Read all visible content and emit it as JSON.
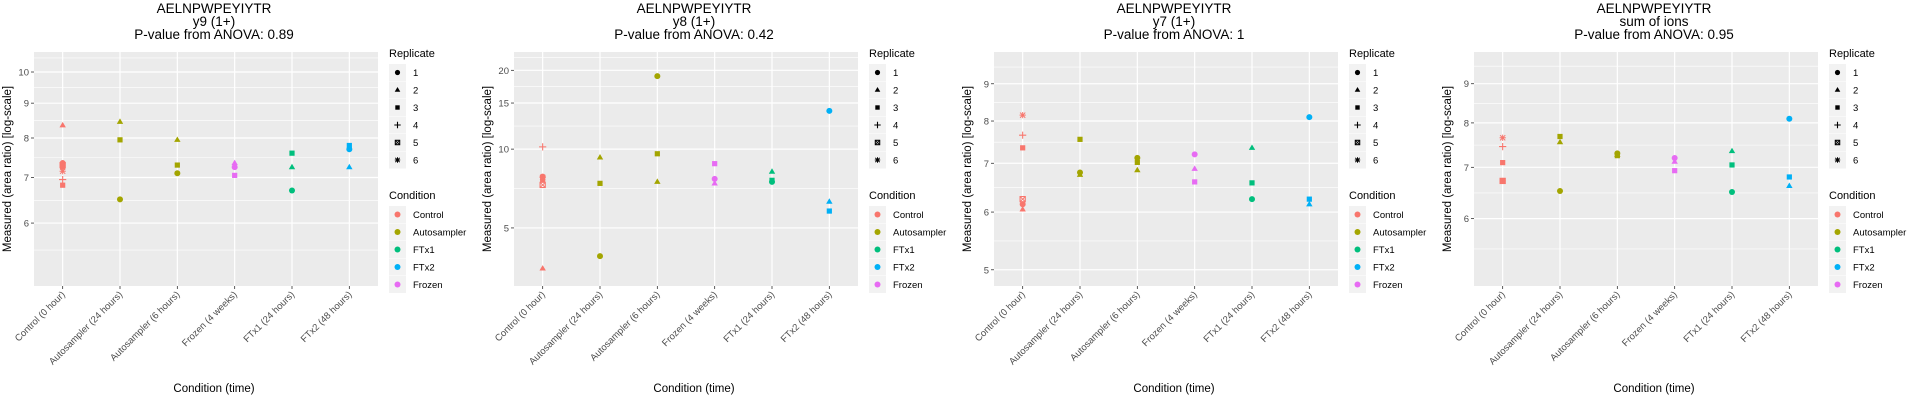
{
  "legend": {
    "replicate_title": "Replicate",
    "replicates": [
      {
        "label": "1",
        "shape": "circle"
      },
      {
        "label": "2",
        "shape": "triangle"
      },
      {
        "label": "3",
        "shape": "square"
      },
      {
        "label": "4",
        "shape": "plus"
      },
      {
        "label": "5",
        "shape": "square-cross"
      },
      {
        "label": "6",
        "shape": "asterisk"
      }
    ],
    "condition_title": "Condition",
    "conditions": [
      {
        "label": "Control",
        "color": "#F8766D"
      },
      {
        "label": "Autosampler",
        "color": "#A3A500"
      },
      {
        "label": "FTx1",
        "color": "#00BF7D"
      },
      {
        "label": "FTx2",
        "color": "#00B0F6"
      },
      {
        "label": "Frozen",
        "color": "#E76BF3"
      }
    ]
  },
  "chart_data": [
    {
      "type": "scatter",
      "title": [
        "AELNPWPEYIYTR",
        "y9 (1+)",
        "P-value from ANOVA: 0.89"
      ],
      "xlabel": "Condition (time)",
      "ylabel": "Measured (area ratio) [log-scale]",
      "yscale": "log",
      "ylim": [
        4.85,
        10.7
      ],
      "yticks": [
        6,
        7,
        8,
        9,
        10
      ],
      "grid": true,
      "legend_position": "right",
      "categories": [
        "Control (0 hour)",
        "Autosampler (24 hours)",
        "Autosampler (6 hours)",
        "Frozen (4 weeks)",
        "FTx1 (24 hours)",
        "FTx2 (48 hours)"
      ],
      "points": [
        {
          "x": 0,
          "y": 8.35,
          "replicate": 2,
          "condition": "Control"
        },
        {
          "x": 0,
          "y": 7.35,
          "replicate": 1,
          "condition": "Control"
        },
        {
          "x": 0,
          "y": 7.3,
          "replicate": 5,
          "condition": "Control"
        },
        {
          "x": 0,
          "y": 7.25,
          "replicate": 3,
          "condition": "Control"
        },
        {
          "x": 0,
          "y": 7.15,
          "replicate": 6,
          "condition": "Control"
        },
        {
          "x": 0,
          "y": 6.95,
          "replicate": 4,
          "condition": "Control"
        },
        {
          "x": 0,
          "y": 6.82,
          "replicate": 3,
          "condition": "Control"
        },
        {
          "x": 1,
          "y": 8.45,
          "replicate": 2,
          "condition": "Autosampler"
        },
        {
          "x": 1,
          "y": 7.95,
          "replicate": 3,
          "condition": "Autosampler"
        },
        {
          "x": 1,
          "y": 6.5,
          "replicate": 1,
          "condition": "Autosampler"
        },
        {
          "x": 2,
          "y": 7.95,
          "replicate": 2,
          "condition": "Autosampler"
        },
        {
          "x": 2,
          "y": 7.3,
          "replicate": 3,
          "condition": "Autosampler"
        },
        {
          "x": 2,
          "y": 7.1,
          "replicate": 1,
          "condition": "Autosampler"
        },
        {
          "x": 3,
          "y": 7.35,
          "replicate": 2,
          "condition": "Frozen"
        },
        {
          "x": 3,
          "y": 7.25,
          "replicate": 1,
          "condition": "Frozen"
        },
        {
          "x": 3,
          "y": 7.05,
          "replicate": 3,
          "condition": "Frozen"
        },
        {
          "x": 4,
          "y": 7.6,
          "replicate": 3,
          "condition": "FTx1"
        },
        {
          "x": 4,
          "y": 7.25,
          "replicate": 2,
          "condition": "FTx1"
        },
        {
          "x": 4,
          "y": 6.7,
          "replicate": 1,
          "condition": "FTx1"
        },
        {
          "x": 5,
          "y": 7.8,
          "replicate": 3,
          "condition": "FTx2"
        },
        {
          "x": 5,
          "y": 7.7,
          "replicate": 1,
          "condition": "FTx2"
        },
        {
          "x": 5,
          "y": 7.25,
          "replicate": 2,
          "condition": "FTx2"
        }
      ]
    },
    {
      "type": "scatter",
      "title": [
        "AELNPWPEYIYTR",
        "y8 (1+)",
        "P-value from ANOVA: 0.42"
      ],
      "xlabel": "Condition (time)",
      "ylabel": "Measured (area ratio) [log-scale]",
      "yscale": "log",
      "ylim": [
        3.0,
        23.5
      ],
      "yticks": [
        5,
        10,
        15,
        20
      ],
      "grid": true,
      "legend_position": "right",
      "categories": [
        "Control (0 hour)",
        "Autosampler (24 hours)",
        "Autosampler (6 hours)",
        "Frozen (4 weeks)",
        "FTx1 (24 hours)",
        "FTx2 (48 hours)"
      ],
      "points": [
        {
          "x": 0,
          "y": 10.2,
          "replicate": 4,
          "condition": "Control"
        },
        {
          "x": 0,
          "y": 7.85,
          "replicate": 1,
          "condition": "Control"
        },
        {
          "x": 0,
          "y": 7.8,
          "replicate": 6,
          "condition": "Control"
        },
        {
          "x": 0,
          "y": 7.65,
          "replicate": 3,
          "condition": "Control"
        },
        {
          "x": 0,
          "y": 7.3,
          "replicate": 5,
          "condition": "Control"
        },
        {
          "x": 0,
          "y": 3.5,
          "replicate": 2,
          "condition": "Control"
        },
        {
          "x": 1,
          "y": 9.3,
          "replicate": 2,
          "condition": "Autosampler"
        },
        {
          "x": 1,
          "y": 7.4,
          "replicate": 3,
          "condition": "Autosampler"
        },
        {
          "x": 1,
          "y": 3.9,
          "replicate": 1,
          "condition": "Autosampler"
        },
        {
          "x": 2,
          "y": 19.0,
          "replicate": 1,
          "condition": "Autosampler"
        },
        {
          "x": 2,
          "y": 9.6,
          "replicate": 3,
          "condition": "Autosampler"
        },
        {
          "x": 2,
          "y": 7.5,
          "replicate": 2,
          "condition": "Autosampler"
        },
        {
          "x": 3,
          "y": 8.8,
          "replicate": 3,
          "condition": "Frozen"
        },
        {
          "x": 3,
          "y": 7.7,
          "replicate": 1,
          "condition": "Frozen"
        },
        {
          "x": 3,
          "y": 7.4,
          "replicate": 2,
          "condition": "Frozen"
        },
        {
          "x": 4,
          "y": 8.2,
          "replicate": 2,
          "condition": "FTx1"
        },
        {
          "x": 4,
          "y": 7.6,
          "replicate": 3,
          "condition": "FTx1"
        },
        {
          "x": 4,
          "y": 7.5,
          "replicate": 1,
          "condition": "FTx1"
        },
        {
          "x": 5,
          "y": 14.0,
          "replicate": 1,
          "condition": "FTx2"
        },
        {
          "x": 5,
          "y": 6.3,
          "replicate": 2,
          "condition": "FTx2"
        },
        {
          "x": 5,
          "y": 5.8,
          "replicate": 3,
          "condition": "FTx2"
        }
      ]
    },
    {
      "type": "scatter",
      "title": [
        "AELNPWPEYIYTR",
        "y7 (1+)",
        "P-value from ANOVA: 1"
      ],
      "xlabel": "Condition (time)",
      "ylabel": "Measured (area ratio) [log-scale]",
      "yscale": "log",
      "ylim": [
        4.75,
        9.95
      ],
      "yticks": [
        5,
        6,
        7,
        8,
        9
      ],
      "grid": true,
      "legend_position": "right",
      "categories": [
        "Control (0 hour)",
        "Autosampler (24 hours)",
        "Autosampler (6 hours)",
        "Frozen (4 weeks)",
        "FTx1 (24 hours)",
        "FTx2 (48 hours)"
      ],
      "points": [
        {
          "x": 0,
          "y": 8.15,
          "replicate": 6,
          "condition": "Control"
        },
        {
          "x": 0,
          "y": 7.65,
          "replicate": 4,
          "condition": "Control"
        },
        {
          "x": 0,
          "y": 7.35,
          "replicate": 3,
          "condition": "Control"
        },
        {
          "x": 0,
          "y": 6.25,
          "replicate": 5,
          "condition": "Control"
        },
        {
          "x": 0,
          "y": 6.15,
          "replicate": 1,
          "condition": "Control"
        },
        {
          "x": 0,
          "y": 6.05,
          "replicate": 2,
          "condition": "Control"
        },
        {
          "x": 1,
          "y": 7.55,
          "replicate": 3,
          "condition": "Autosampler"
        },
        {
          "x": 1,
          "y": 6.8,
          "replicate": 1,
          "condition": "Autosampler"
        },
        {
          "x": 1,
          "y": 6.75,
          "replicate": 2,
          "condition": "Autosampler"
        },
        {
          "x": 2,
          "y": 7.12,
          "replicate": 1,
          "condition": "Autosampler"
        },
        {
          "x": 2,
          "y": 7.02,
          "replicate": 3,
          "condition": "Autosampler"
        },
        {
          "x": 2,
          "y": 6.85,
          "replicate": 2,
          "condition": "Autosampler"
        },
        {
          "x": 3,
          "y": 7.2,
          "replicate": 1,
          "condition": "Frozen"
        },
        {
          "x": 3,
          "y": 6.88,
          "replicate": 2,
          "condition": "Frozen"
        },
        {
          "x": 3,
          "y": 6.6,
          "replicate": 3,
          "condition": "Frozen"
        },
        {
          "x": 4,
          "y": 7.35,
          "replicate": 2,
          "condition": "FTx1"
        },
        {
          "x": 4,
          "y": 6.58,
          "replicate": 3,
          "condition": "FTx1"
        },
        {
          "x": 4,
          "y": 6.25,
          "replicate": 1,
          "condition": "FTx1"
        },
        {
          "x": 5,
          "y": 8.1,
          "replicate": 1,
          "condition": "FTx2"
        },
        {
          "x": 5,
          "y": 6.25,
          "replicate": 3,
          "condition": "FTx2"
        },
        {
          "x": 5,
          "y": 6.15,
          "replicate": 2,
          "condition": "FTx2"
        }
      ]
    },
    {
      "type": "scatter",
      "title": [
        "AELNPWPEYIYTR",
        "sum of ions",
        "P-value from ANOVA: 0.95"
      ],
      "xlabel": "Condition (time)",
      "ylabel": "Measured (area ratio) [log-scale]",
      "yscale": "log",
      "ylim": [
        4.9,
        9.9
      ],
      "yticks": [
        6,
        7,
        8,
        9
      ],
      "grid": true,
      "legend_position": "right",
      "categories": [
        "Control (0 hour)",
        "Autosampler (24 hours)",
        "Autosampler (6 hours)",
        "Frozen (4 weeks)",
        "FTx1 (24 hours)",
        "FTx2 (48 hours)"
      ],
      "points": [
        {
          "x": 0,
          "y": 7.65,
          "replicate": 6,
          "condition": "Control"
        },
        {
          "x": 0,
          "y": 7.45,
          "replicate": 4,
          "condition": "Control"
        },
        {
          "x": 0,
          "y": 7.1,
          "replicate": 3,
          "condition": "Control"
        },
        {
          "x": 0,
          "y": 6.72,
          "replicate": 5,
          "condition": "Control"
        },
        {
          "x": 0,
          "y": 6.72,
          "replicate": 1,
          "condition": "Control"
        },
        {
          "x": 1,
          "y": 7.68,
          "replicate": 3,
          "condition": "Autosampler"
        },
        {
          "x": 1,
          "y": 7.55,
          "replicate": 2,
          "condition": "Autosampler"
        },
        {
          "x": 1,
          "y": 6.52,
          "replicate": 1,
          "condition": "Autosampler"
        },
        {
          "x": 2,
          "y": 7.3,
          "replicate": 1,
          "condition": "Autosampler"
        },
        {
          "x": 2,
          "y": 7.27,
          "replicate": 2,
          "condition": "Autosampler"
        },
        {
          "x": 2,
          "y": 7.25,
          "replicate": 3,
          "condition": "Autosampler"
        },
        {
          "x": 3,
          "y": 7.2,
          "replicate": 1,
          "condition": "Frozen"
        },
        {
          "x": 3,
          "y": 7.12,
          "replicate": 2,
          "condition": "Frozen"
        },
        {
          "x": 3,
          "y": 6.93,
          "replicate": 3,
          "condition": "Frozen"
        },
        {
          "x": 4,
          "y": 7.35,
          "replicate": 2,
          "condition": "FTx1"
        },
        {
          "x": 4,
          "y": 7.05,
          "replicate": 3,
          "condition": "FTx1"
        },
        {
          "x": 4,
          "y": 6.5,
          "replicate": 1,
          "condition": "FTx1"
        },
        {
          "x": 5,
          "y": 8.1,
          "replicate": 1,
          "condition": "FTx2"
        },
        {
          "x": 5,
          "y": 6.8,
          "replicate": 3,
          "condition": "FTx2"
        },
        {
          "x": 5,
          "y": 6.62,
          "replicate": 2,
          "condition": "FTx2"
        }
      ]
    }
  ]
}
